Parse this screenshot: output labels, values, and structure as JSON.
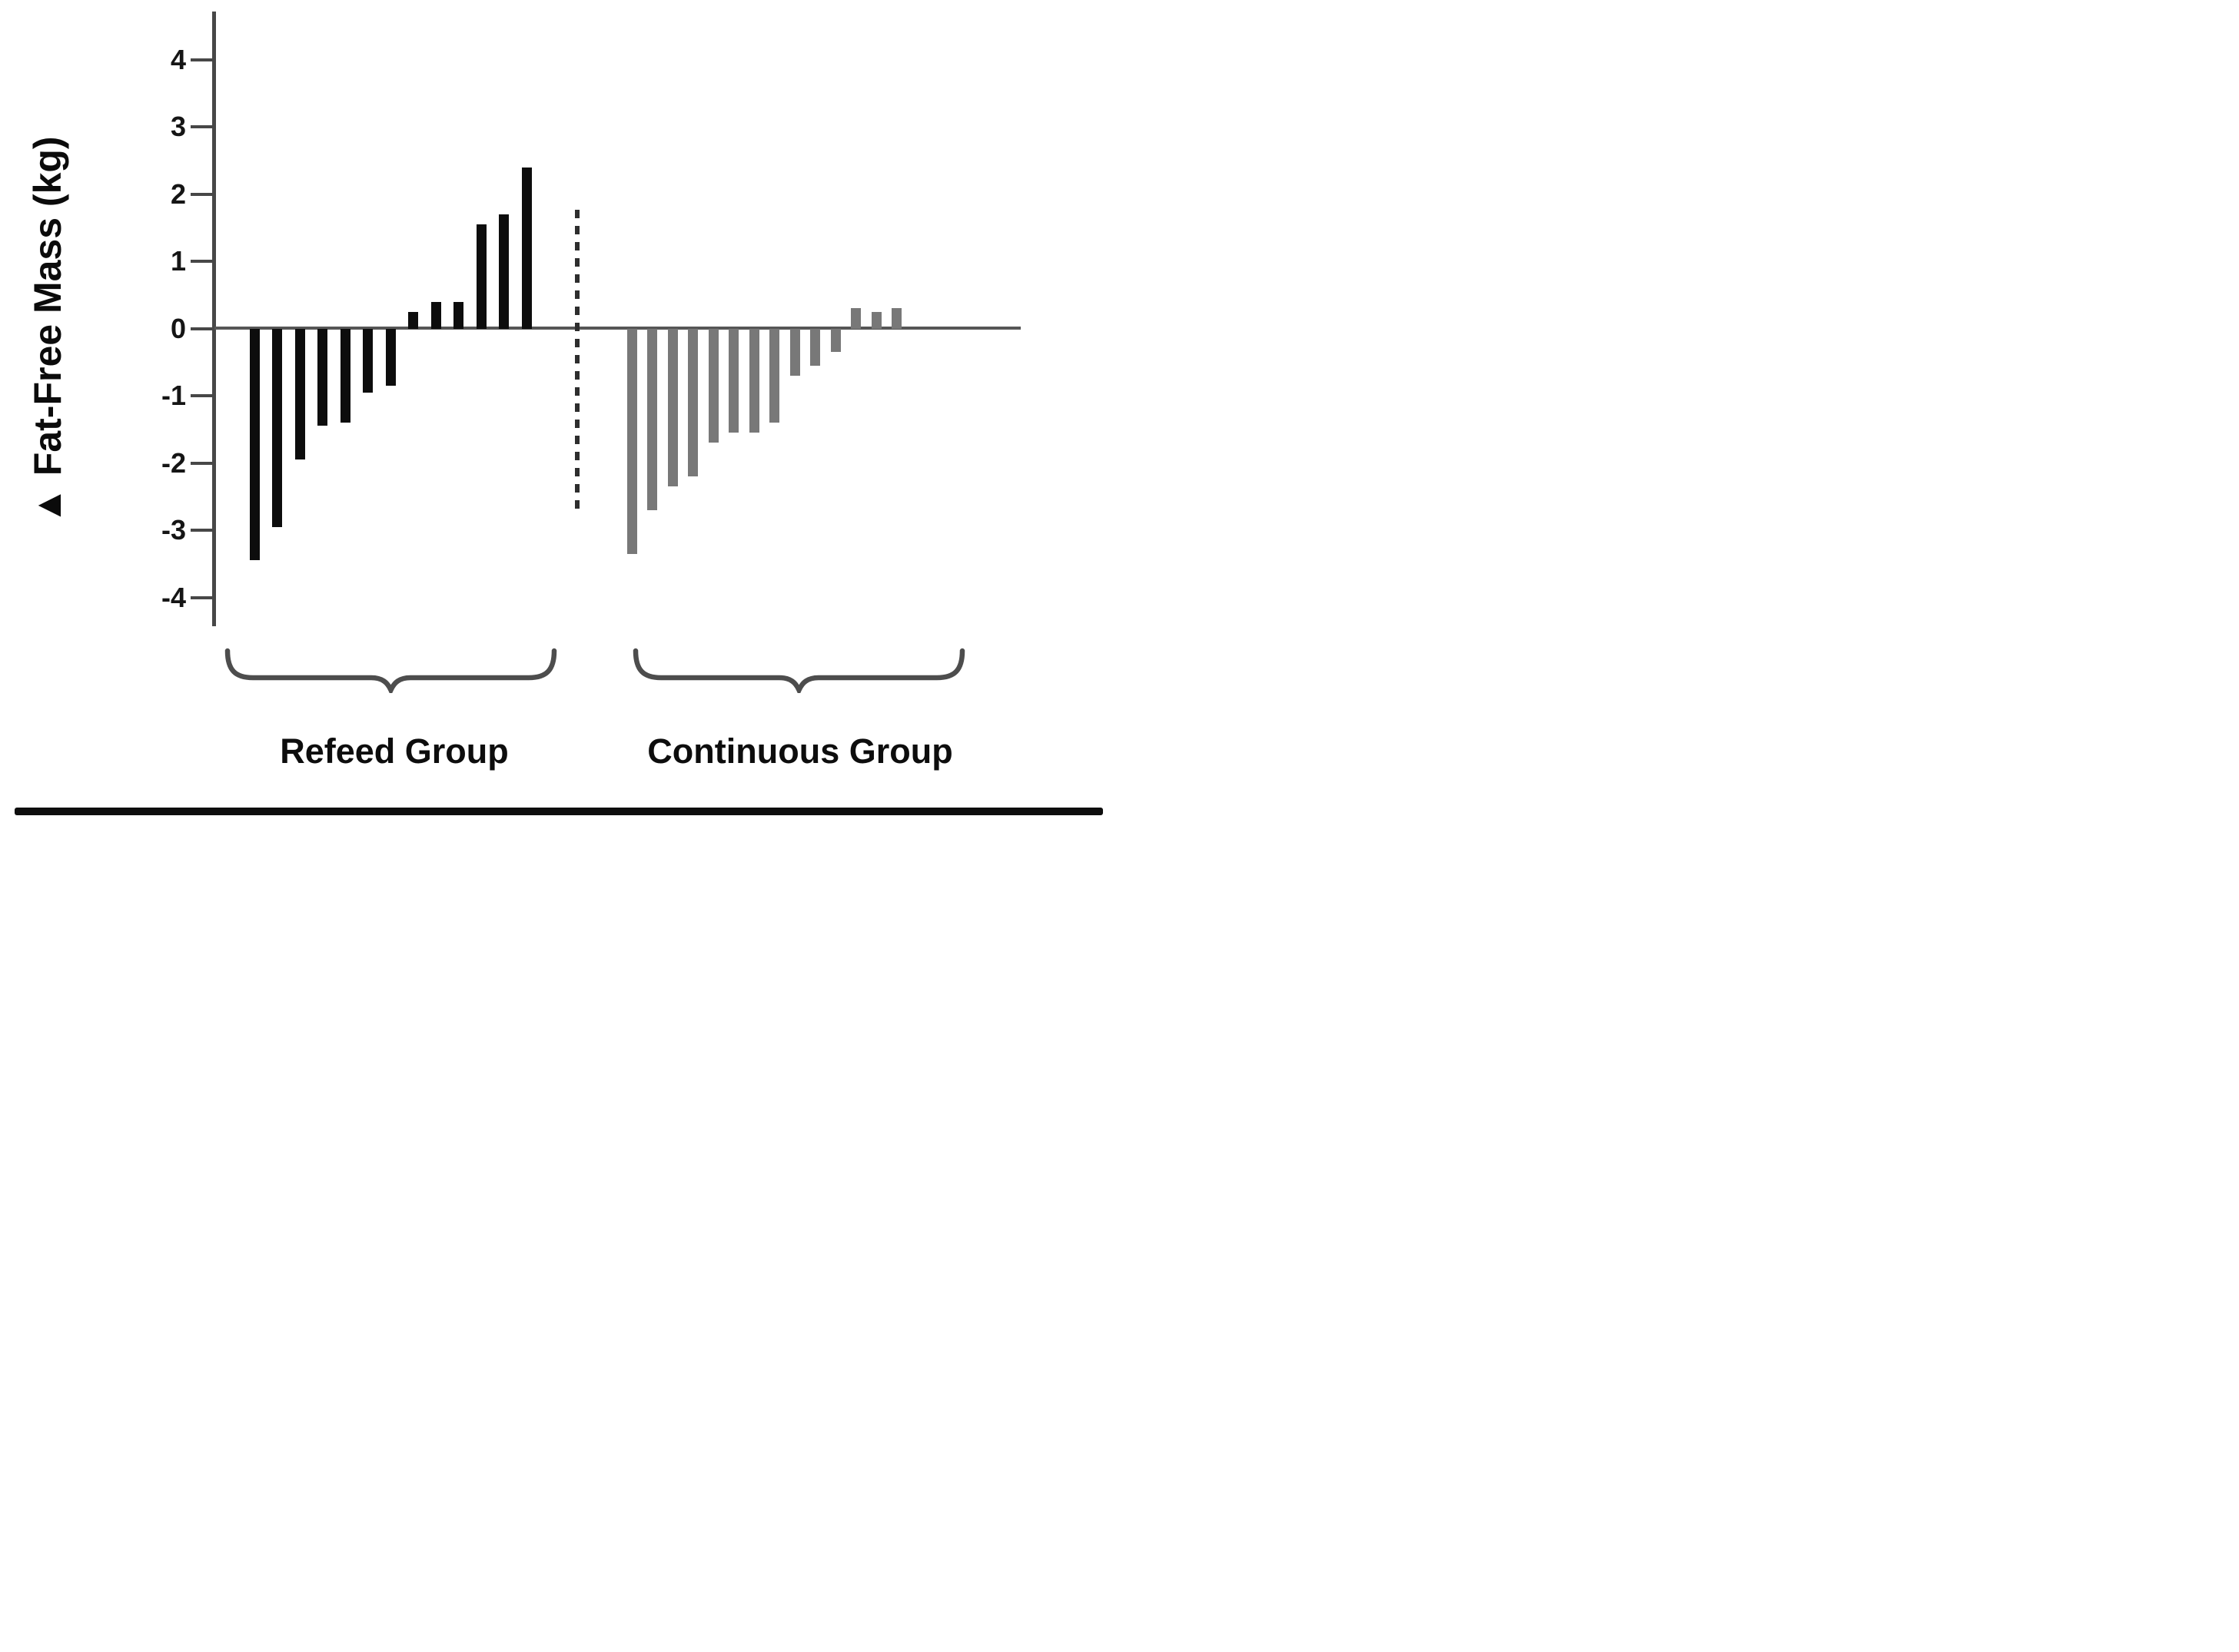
{
  "chart_data": {
    "type": "bar",
    "title": "",
    "ylabel": "▲ Fat-Free Mass (kg)",
    "xlabel": "",
    "ylim": [
      -4.6,
      4.6
    ],
    "yticks": [
      4,
      3,
      2,
      1,
      0,
      -1,
      -2,
      -3,
      -4
    ],
    "grid": false,
    "baseline": 0,
    "legend_position": "none",
    "series": [
      {
        "name": "Refeed Group",
        "color": "#0d0d0d",
        "values": [
          -3.45,
          -2.95,
          -1.95,
          -1.45,
          -1.4,
          -0.95,
          -0.85,
          0.25,
          0.4,
          0.4,
          1.55,
          1.7,
          2.4
        ]
      },
      {
        "name": "Continuous Group",
        "color": "#787878",
        "values": [
          -3.35,
          -2.7,
          -2.35,
          -2.2,
          -1.7,
          -1.55,
          -1.55,
          -1.4,
          -0.7,
          -0.55,
          -0.35,
          0.3,
          0.25,
          0.3
        ]
      }
    ],
    "divider": {
      "style": "vertical-dashed-line",
      "between": [
        "Refeed Group",
        "Continuous Group"
      ]
    }
  }
}
